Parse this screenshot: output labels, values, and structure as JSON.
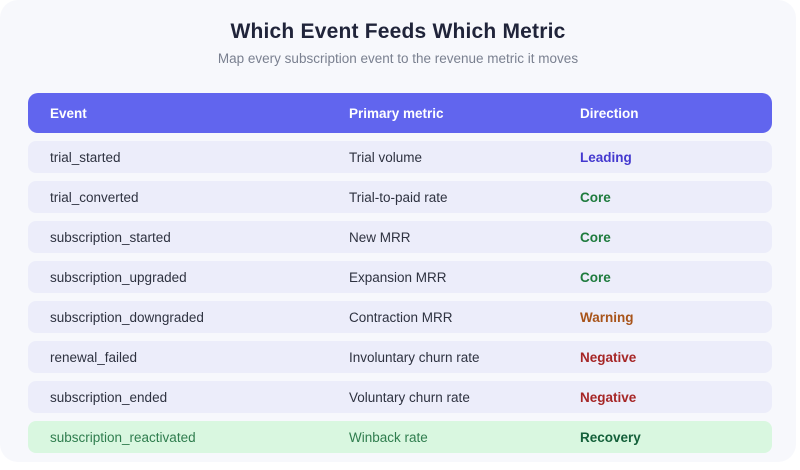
{
  "page": {
    "title": "Which Event Feeds Which Metric",
    "subtitle": "Map every subscription event to the revenue metric it moves"
  },
  "chart_data": {
    "type": "table",
    "title": "Which Event Feeds Which Metric",
    "subtitle": "Map every subscription event to the revenue metric it moves",
    "columns": [
      "Event",
      "Primary metric",
      "Direction"
    ],
    "rows": [
      {
        "event": "trial_started",
        "metric": "Trial volume",
        "direction": "Leading",
        "direction_color": "#4439cf",
        "highlight": false
      },
      {
        "event": "trial_converted",
        "metric": "Trial-to-paid rate",
        "direction": "Core",
        "direction_color": "#1e7b3d",
        "highlight": false
      },
      {
        "event": "subscription_started",
        "metric": "New MRR",
        "direction": "Core",
        "direction_color": "#1e7b3d",
        "highlight": false
      },
      {
        "event": "subscription_upgraded",
        "metric": "Expansion MRR",
        "direction": "Core",
        "direction_color": "#1e7b3d",
        "highlight": false
      },
      {
        "event": "subscription_downgraded",
        "metric": "Contraction MRR",
        "direction": "Warning",
        "direction_color": "#a8541a",
        "highlight": false
      },
      {
        "event": "renewal_failed",
        "metric": "Involuntary churn rate",
        "direction": "Negative",
        "direction_color": "#a62626",
        "highlight": false
      },
      {
        "event": "subscription_ended",
        "metric": "Voluntary churn rate",
        "direction": "Negative",
        "direction_color": "#a62626",
        "highlight": false
      },
      {
        "event": "subscription_reactivated",
        "metric": "Winback rate",
        "direction": "Recovery",
        "direction_color": "#14603a",
        "highlight": true
      }
    ]
  },
  "colors": {
    "card_bg": "#f7f8fc",
    "header_bg": "#6165ee",
    "header_text": "#ffffff",
    "row_bg": "#ecedfa",
    "highlight_row_bg": "#d9f7e0",
    "highlight_text": "#2f7d4e",
    "title_color": "#20243a",
    "subtitle_color": "#7a8090",
    "cell_text": "#2e3240"
  }
}
